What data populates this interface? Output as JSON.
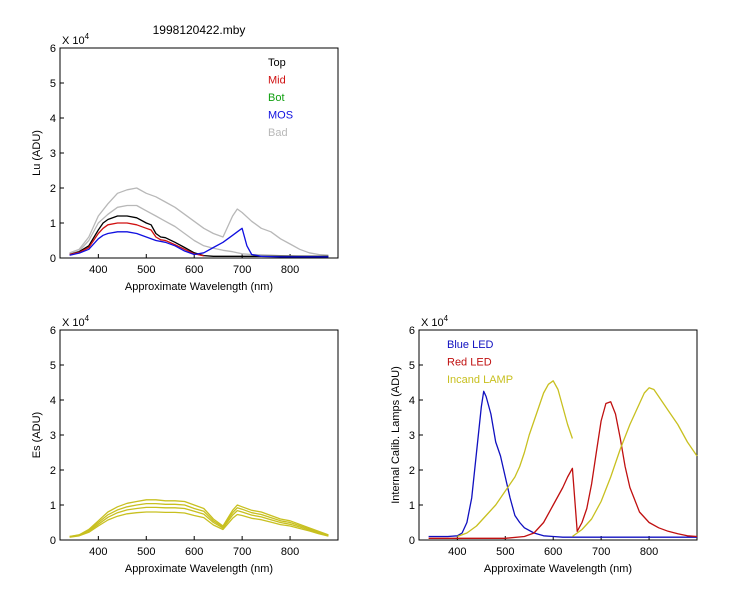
{
  "colors": {
    "top": "#000000",
    "mid": "#d01010",
    "bot": "#10a010",
    "mos": "#1010e0",
    "bad": "#b8b8b8",
    "es": "#c8c020",
    "blue_led": "#1010c0",
    "red_led": "#c01010",
    "incand": "#c8c020"
  },
  "chart_data": [
    {
      "id": "lu",
      "type": "line",
      "title": "1998120422.mby",
      "xlabel": "Approximate Wavelength (nm)",
      "ylabel": "Lu (ADU)",
      "exponent_label": "X 10",
      "exponent": "4",
      "xlim": [
        320,
        900
      ],
      "ylim": [
        0,
        6
      ],
      "xticks": [
        400,
        500,
        600,
        700,
        800
      ],
      "yticks": [
        0,
        1,
        2,
        3,
        4,
        5,
        6
      ],
      "legend_position": "top-right",
      "legend": [
        {
          "name": "Top",
          "color_key": "top"
        },
        {
          "name": "Mid",
          "color_key": "mid"
        },
        {
          "name": "Bot",
          "color_key": "bot"
        },
        {
          "name": "MOS",
          "color_key": "mos"
        },
        {
          "name": "Bad",
          "color_key": "bad"
        }
      ],
      "series": [
        {
          "color_key": "bad",
          "x": [
            340,
            360,
            380,
            400,
            420,
            440,
            460,
            480,
            500,
            520,
            540,
            560,
            580,
            600,
            620,
            640,
            660,
            680,
            690,
            700,
            720,
            740,
            760,
            780,
            800,
            820,
            840,
            860,
            880
          ],
          "y": [
            0.15,
            0.25,
            0.6,
            1.2,
            1.55,
            1.85,
            1.95,
            2.0,
            1.85,
            1.75,
            1.6,
            1.45,
            1.25,
            1.05,
            0.85,
            0.7,
            0.6,
            1.2,
            1.4,
            1.3,
            1.05,
            0.85,
            0.75,
            0.55,
            0.4,
            0.25,
            0.15,
            0.1,
            0.08
          ]
        },
        {
          "color_key": "bad",
          "x": [
            340,
            360,
            380,
            400,
            420,
            440,
            460,
            480,
            500,
            520,
            540,
            560,
            580,
            600,
            620,
            640,
            660,
            680,
            690,
            700,
            720,
            740,
            760,
            780,
            800,
            820,
            840,
            860,
            880
          ],
          "y": [
            0.12,
            0.2,
            0.5,
            1.0,
            1.25,
            1.45,
            1.5,
            1.5,
            1.35,
            1.2,
            1.05,
            0.9,
            0.7,
            0.5,
            0.35,
            0.28,
            0.22,
            0.18,
            0.15,
            0.12,
            0.1,
            0.09,
            0.08,
            0.07,
            0.06,
            0.05,
            0.04,
            0.03,
            0.03
          ]
        },
        {
          "color_key": "top",
          "x": [
            340,
            360,
            380,
            400,
            410,
            420,
            440,
            460,
            480,
            500,
            510,
            520,
            530,
            540,
            560,
            580,
            600,
            620,
            640,
            660,
            680,
            700,
            720,
            740,
            760,
            780,
            800,
            820,
            840,
            860,
            880
          ],
          "y": [
            0.1,
            0.18,
            0.35,
            0.8,
            1.0,
            1.1,
            1.2,
            1.2,
            1.15,
            1.0,
            0.95,
            0.7,
            0.6,
            0.58,
            0.45,
            0.3,
            0.15,
            0.07,
            0.05,
            0.05,
            0.05,
            0.05,
            0.05,
            0.05,
            0.05,
            0.05,
            0.05,
            0.05,
            0.05,
            0.05,
            0.05
          ]
        },
        {
          "color_key": "mid",
          "x": [
            340,
            360,
            380,
            400,
            410,
            420,
            440,
            460,
            480,
            500,
            510,
            520,
            530,
            540,
            560,
            580,
            600,
            620
          ],
          "y": [
            0.1,
            0.16,
            0.3,
            0.7,
            0.85,
            0.95,
            1.0,
            1.0,
            0.95,
            0.85,
            0.8,
            0.6,
            0.52,
            0.5,
            0.38,
            0.25,
            0.12,
            0.06
          ]
        },
        {
          "color_key": "mos",
          "x": [
            340,
            360,
            380,
            400,
            410,
            420,
            440,
            460,
            480,
            500,
            520,
            540,
            560,
            580,
            600,
            620,
            640,
            660,
            670,
            680,
            690,
            700,
            710,
            720,
            740,
            760,
            780,
            800,
            820,
            840,
            860,
            880
          ],
          "y": [
            0.08,
            0.14,
            0.25,
            0.55,
            0.65,
            0.7,
            0.75,
            0.75,
            0.7,
            0.6,
            0.5,
            0.45,
            0.35,
            0.2,
            0.1,
            0.15,
            0.3,
            0.45,
            0.55,
            0.65,
            0.75,
            0.85,
            0.35,
            0.1,
            0.05,
            0.04,
            0.03,
            0.03,
            0.03,
            0.03,
            0.03,
            0.03
          ]
        }
      ]
    },
    {
      "id": "es",
      "type": "line",
      "xlabel": "Approximate Wavelength (nm)",
      "ylabel": "Es (ADU)",
      "exponent_label": "X 10",
      "exponent": "4",
      "xlim": [
        320,
        900
      ],
      "ylim": [
        0,
        6
      ],
      "xticks": [
        400,
        500,
        600,
        700,
        800
      ],
      "yticks": [
        0,
        1,
        2,
        3,
        4,
        5,
        6
      ],
      "series": [
        {
          "color_key": "es",
          "x": [
            340,
            360,
            380,
            400,
            420,
            440,
            460,
            480,
            500,
            520,
            540,
            560,
            580,
            600,
            620,
            640,
            660,
            680,
            690,
            700,
            720,
            740,
            760,
            780,
            800,
            820,
            840,
            860,
            880
          ],
          "y": [
            0.1,
            0.15,
            0.3,
            0.55,
            0.8,
            0.95,
            1.05,
            1.1,
            1.15,
            1.15,
            1.12,
            1.12,
            1.1,
            1.0,
            0.9,
            0.6,
            0.4,
            0.85,
            1.0,
            0.95,
            0.85,
            0.8,
            0.7,
            0.6,
            0.55,
            0.45,
            0.35,
            0.25,
            0.15
          ]
        },
        {
          "color_key": "es",
          "x": [
            340,
            360,
            380,
            400,
            420,
            440,
            460,
            480,
            500,
            520,
            540,
            560,
            580,
            600,
            620,
            640,
            660,
            680,
            690,
            700,
            720,
            740,
            760,
            780,
            800,
            820,
            840,
            860,
            880
          ],
          "y": [
            0.1,
            0.14,
            0.27,
            0.5,
            0.72,
            0.86,
            0.95,
            1.0,
            1.04,
            1.04,
            1.02,
            1.02,
            1.0,
            0.9,
            0.82,
            0.55,
            0.37,
            0.78,
            0.92,
            0.88,
            0.78,
            0.73,
            0.64,
            0.55,
            0.5,
            0.41,
            0.32,
            0.22,
            0.14
          ]
        },
        {
          "color_key": "es",
          "x": [
            340,
            360,
            380,
            400,
            420,
            440,
            460,
            480,
            500,
            520,
            540,
            560,
            580,
            600,
            620,
            640,
            660,
            680,
            690,
            700,
            720,
            740,
            760,
            780,
            800,
            820,
            840,
            860,
            880
          ],
          "y": [
            0.09,
            0.13,
            0.25,
            0.45,
            0.65,
            0.78,
            0.86,
            0.9,
            0.93,
            0.93,
            0.92,
            0.92,
            0.9,
            0.82,
            0.74,
            0.5,
            0.34,
            0.71,
            0.84,
            0.8,
            0.71,
            0.66,
            0.58,
            0.5,
            0.45,
            0.37,
            0.29,
            0.2,
            0.12
          ]
        },
        {
          "color_key": "es",
          "x": [
            340,
            360,
            380,
            400,
            420,
            440,
            460,
            480,
            500,
            520,
            540,
            560,
            580,
            600,
            620,
            640,
            660,
            680,
            690,
            700,
            720,
            740,
            760,
            780,
            800,
            820,
            840,
            860,
            880
          ],
          "y": [
            0.08,
            0.12,
            0.22,
            0.4,
            0.57,
            0.68,
            0.75,
            0.78,
            0.8,
            0.8,
            0.79,
            0.79,
            0.77,
            0.7,
            0.64,
            0.43,
            0.3,
            0.62,
            0.73,
            0.7,
            0.62,
            0.58,
            0.51,
            0.44,
            0.4,
            0.33,
            0.26,
            0.18,
            0.11
          ]
        }
      ]
    },
    {
      "id": "lamps",
      "type": "line",
      "xlabel": "Approximate Wavelength (nm)",
      "ylabel": "Internal Calib. Lamps (ADU)",
      "exponent_label": "X 10",
      "exponent": "4",
      "xlim": [
        320,
        900
      ],
      "ylim": [
        0,
        6
      ],
      "xticks": [
        400,
        500,
        600,
        700,
        800
      ],
      "yticks": [
        0,
        1,
        2,
        3,
        4,
        5,
        6
      ],
      "legend_position": "top-left",
      "legend": [
        {
          "name": "Blue LED",
          "color_key": "blue_led"
        },
        {
          "name": "Red LED",
          "color_key": "red_led"
        },
        {
          "name": "Incand LAMP",
          "color_key": "incand"
        }
      ],
      "series": [
        {
          "color_key": "blue_led",
          "x": [
            340,
            380,
            400,
            410,
            420,
            430,
            440,
            450,
            455,
            460,
            470,
            480,
            490,
            500,
            510,
            520,
            530,
            540,
            560,
            580,
            600,
            620,
            640,
            660,
            700,
            750,
            800,
            850,
            900
          ],
          "y": [
            0.1,
            0.1,
            0.12,
            0.2,
            0.5,
            1.2,
            2.5,
            3.8,
            4.25,
            4.1,
            3.6,
            2.8,
            2.4,
            1.8,
            1.2,
            0.7,
            0.5,
            0.35,
            0.2,
            0.12,
            0.1,
            0.08,
            0.08,
            0.08,
            0.08,
            0.08,
            0.08,
            0.08,
            0.08
          ]
        },
        {
          "color_key": "red_led",
          "x": [
            340,
            500,
            540,
            560,
            580,
            600,
            620,
            630,
            640,
            650,
            660,
            670,
            680,
            690,
            700,
            710,
            720,
            730,
            740,
            750,
            760,
            780,
            800,
            820,
            840,
            860,
            880,
            900
          ],
          "y": [
            0.05,
            0.05,
            0.1,
            0.2,
            0.5,
            1.0,
            1.5,
            1.8,
            2.05,
            0.25,
            0.5,
            0.9,
            1.6,
            2.5,
            3.4,
            3.9,
            3.95,
            3.6,
            2.9,
            2.1,
            1.5,
            0.8,
            0.5,
            0.35,
            0.25,
            0.18,
            0.12,
            0.1
          ]
        },
        {
          "color_key": "incand",
          "x": [
            400,
            420,
            440,
            460,
            480,
            500,
            510,
            520,
            530,
            540,
            550,
            560,
            570,
            580,
            590,
            600,
            610,
            620,
            630,
            640
          ],
          "y": [
            0.1,
            0.2,
            0.4,
            0.7,
            1.0,
            1.4,
            1.6,
            1.8,
            2.1,
            2.5,
            3.0,
            3.4,
            3.8,
            4.2,
            4.45,
            4.55,
            4.3,
            3.8,
            3.3,
            2.9
          ]
        },
        {
          "color_key": "incand",
          "x": [
            640,
            660,
            680,
            700,
            720,
            740,
            760,
            780,
            790,
            800,
            810,
            820,
            840,
            860,
            880,
            900
          ],
          "y": [
            0.1,
            0.3,
            0.6,
            1.1,
            1.8,
            2.6,
            3.3,
            3.9,
            4.2,
            4.35,
            4.3,
            4.1,
            3.7,
            3.3,
            2.8,
            2.4
          ]
        }
      ]
    }
  ]
}
